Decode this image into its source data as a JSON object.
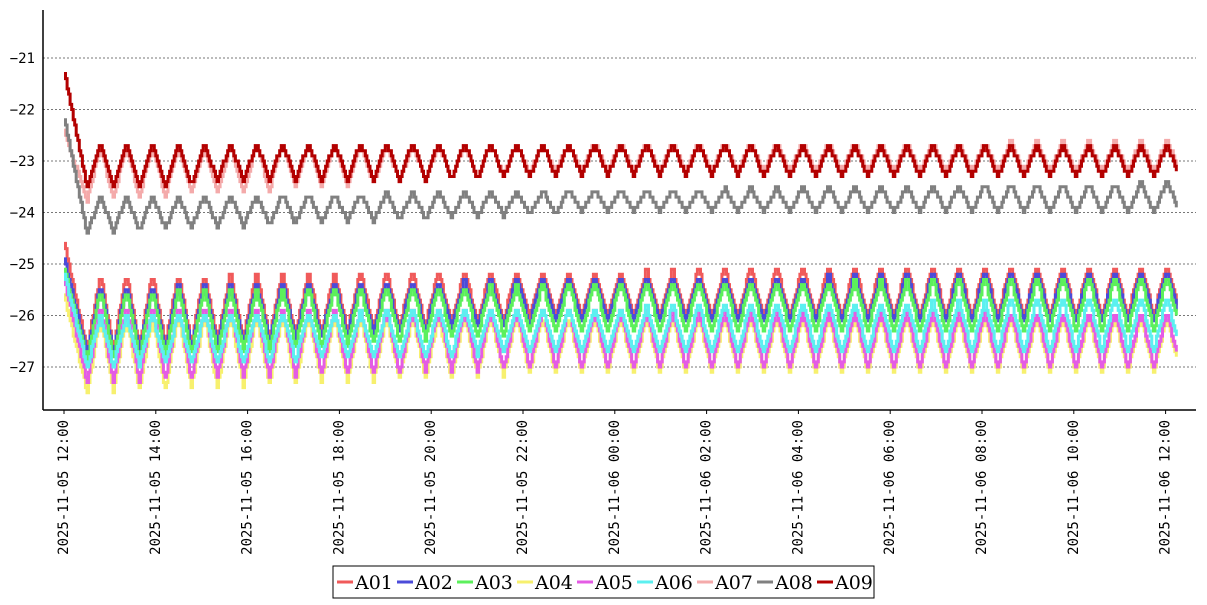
{
  "chart_data": {
    "type": "line",
    "title": "",
    "xlabel": "",
    "ylabel": "",
    "ylim": [
      -27.85,
      -20.0
    ],
    "yticks": [
      -21,
      -22,
      -23,
      -24,
      -25,
      -26,
      -27
    ],
    "ytick_labels": [
      "−21",
      "−22",
      "−23",
      "−24",
      "−25",
      "−26",
      "−27"
    ],
    "grid": "horizontal dotted",
    "legend_position": "bottom-center",
    "x_start": "2025-11-05 12:00",
    "x_end": "2025-11-06 12:15",
    "xticks": [
      "2025-11-05 12:00",
      "2025-11-05 14:00",
      "2025-11-05 16:00",
      "2025-11-05 18:00",
      "2025-11-05 20:00",
      "2025-11-05 22:00",
      "2025-11-06 00:00",
      "2025-11-06 02:00",
      "2025-11-06 04:00",
      "2025-11-06 06:00",
      "2025-11-06 08:00",
      "2025-11-06 10:00",
      "2025-11-06 12:00"
    ],
    "oscillation_period_minutes": 34,
    "series": [
      {
        "name": "A01",
        "color": "#f05a5a",
        "start": -24.6,
        "valley_start": -26.7,
        "valley_end": -26.0,
        "peak": -25.2,
        "peak_end": -25.0,
        "settle_minutes": 30
      },
      {
        "name": "A02",
        "color": "#4b4bd9",
        "start": -24.9,
        "valley_start": -26.8,
        "valley_end": -26.1,
        "peak": -25.4,
        "peak_end": -25.1,
        "settle_minutes": 30
      },
      {
        "name": "A03",
        "color": "#5cf05c",
        "start": -25.1,
        "valley_start": -26.9,
        "valley_end": -26.3,
        "peak": -25.5,
        "peak_end": -25.2,
        "settle_minutes": 30
      },
      {
        "name": "A04",
        "color": "#f7f06e",
        "start": -25.6,
        "valley_start": -27.5,
        "valley_end": -27.1,
        "peak": -26.0,
        "peak_end": -26.0,
        "settle_minutes": 30
      },
      {
        "name": "A05",
        "color": "#e45ce4",
        "start": -25.3,
        "valley_start": -27.3,
        "valley_end": -27.0,
        "peak": -25.8,
        "peak_end": -25.9,
        "settle_minutes": 30
      },
      {
        "name": "A06",
        "color": "#5cf0f0",
        "start": -25.2,
        "valley_start": -27.0,
        "valley_end": -26.7,
        "peak": -26.0,
        "peak_end": -25.6,
        "settle_minutes": 30
      },
      {
        "name": "A07",
        "color": "#f4aaaa",
        "start": -22.4,
        "valley_start": -23.8,
        "valley_end": -23.2,
        "peak": -22.7,
        "peak_end": -22.6,
        "settle_minutes": 30
      },
      {
        "name": "A08",
        "color": "#808080",
        "start": -22.2,
        "valley_start": -24.4,
        "valley_end": -24.0,
        "peak": -23.7,
        "peak_end": -23.4,
        "settle_minutes": 30
      },
      {
        "name": "A09",
        "color": "#b30000",
        "start": -21.3,
        "valley_start": -23.5,
        "valley_end": -23.3,
        "peak": -22.6,
        "peak_end": -22.7,
        "settle_minutes": 30
      }
    ]
  }
}
